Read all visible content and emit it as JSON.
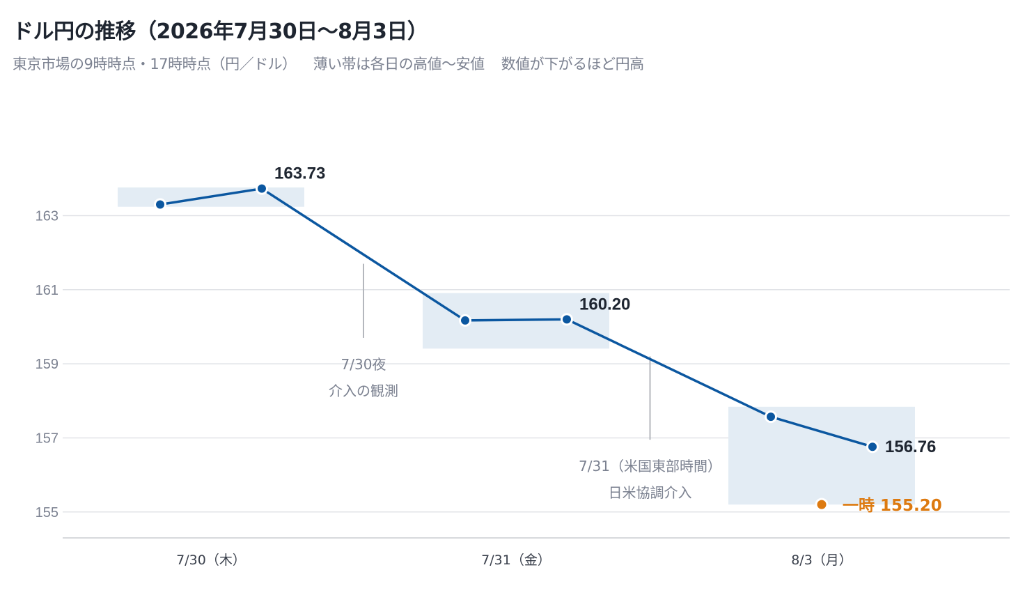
{
  "chart_data": {
    "type": "line",
    "title": "ドル円の推移（2026年7月30日〜8月3日）",
    "subtitle_parts": [
      "東京市場の9時時点・17時時点（円／ドル）",
      "薄い帯は各日の高値〜安値",
      "数値が下がるほど円高"
    ],
    "categories": [
      "7/30（木）",
      "7/31（金）",
      "8/3（月）"
    ],
    "ylim": [
      154.3,
      166
    ],
    "yticks": [
      155,
      157,
      159,
      161,
      163
    ],
    "grid": true,
    "points": [
      {
        "day": 0,
        "slot": 0,
        "value": 163.3
      },
      {
        "day": 0,
        "slot": 1,
        "value": 163.73
      },
      {
        "day": 1,
        "slot": 0,
        "value": 160.17
      },
      {
        "day": 1,
        "slot": 1,
        "value": 160.2
      },
      {
        "day": 2,
        "slot": 0,
        "value": 157.57
      },
      {
        "day": 2,
        "slot": 1,
        "value": 156.76
      }
    ],
    "ranges": [
      {
        "day": 0,
        "low": 163.24,
        "high": 163.76
      },
      {
        "day": 1,
        "low": 159.41,
        "high": 160.91
      },
      {
        "day": 2,
        "low": 155.2,
        "high": 157.84
      }
    ],
    "value_labels": [
      {
        "point": 1,
        "text": "163.73"
      },
      {
        "point": 3,
        "text": "160.20"
      },
      {
        "point": 5,
        "text": "156.76"
      }
    ],
    "intraday_low": {
      "day": 2,
      "value": 155.2,
      "text": "一時 155.20"
    },
    "annotations": [
      {
        "lines": [
          "7/30夜",
          "介入の観測"
        ],
        "after_day": 0,
        "top": 161.7,
        "bottom": 159.7
      },
      {
        "lines": [
          "7/31（米国東部時間）",
          "日米協調介入"
        ],
        "after_day": 1,
        "top": 159.2,
        "bottom": 156.95
      }
    ],
    "colors": {
      "line": "#0b57a0",
      "band": "#e3ecf4",
      "grid": "#e1e3e7",
      "low": "#dd7a10",
      "annotation": "#b4b7bd"
    }
  }
}
